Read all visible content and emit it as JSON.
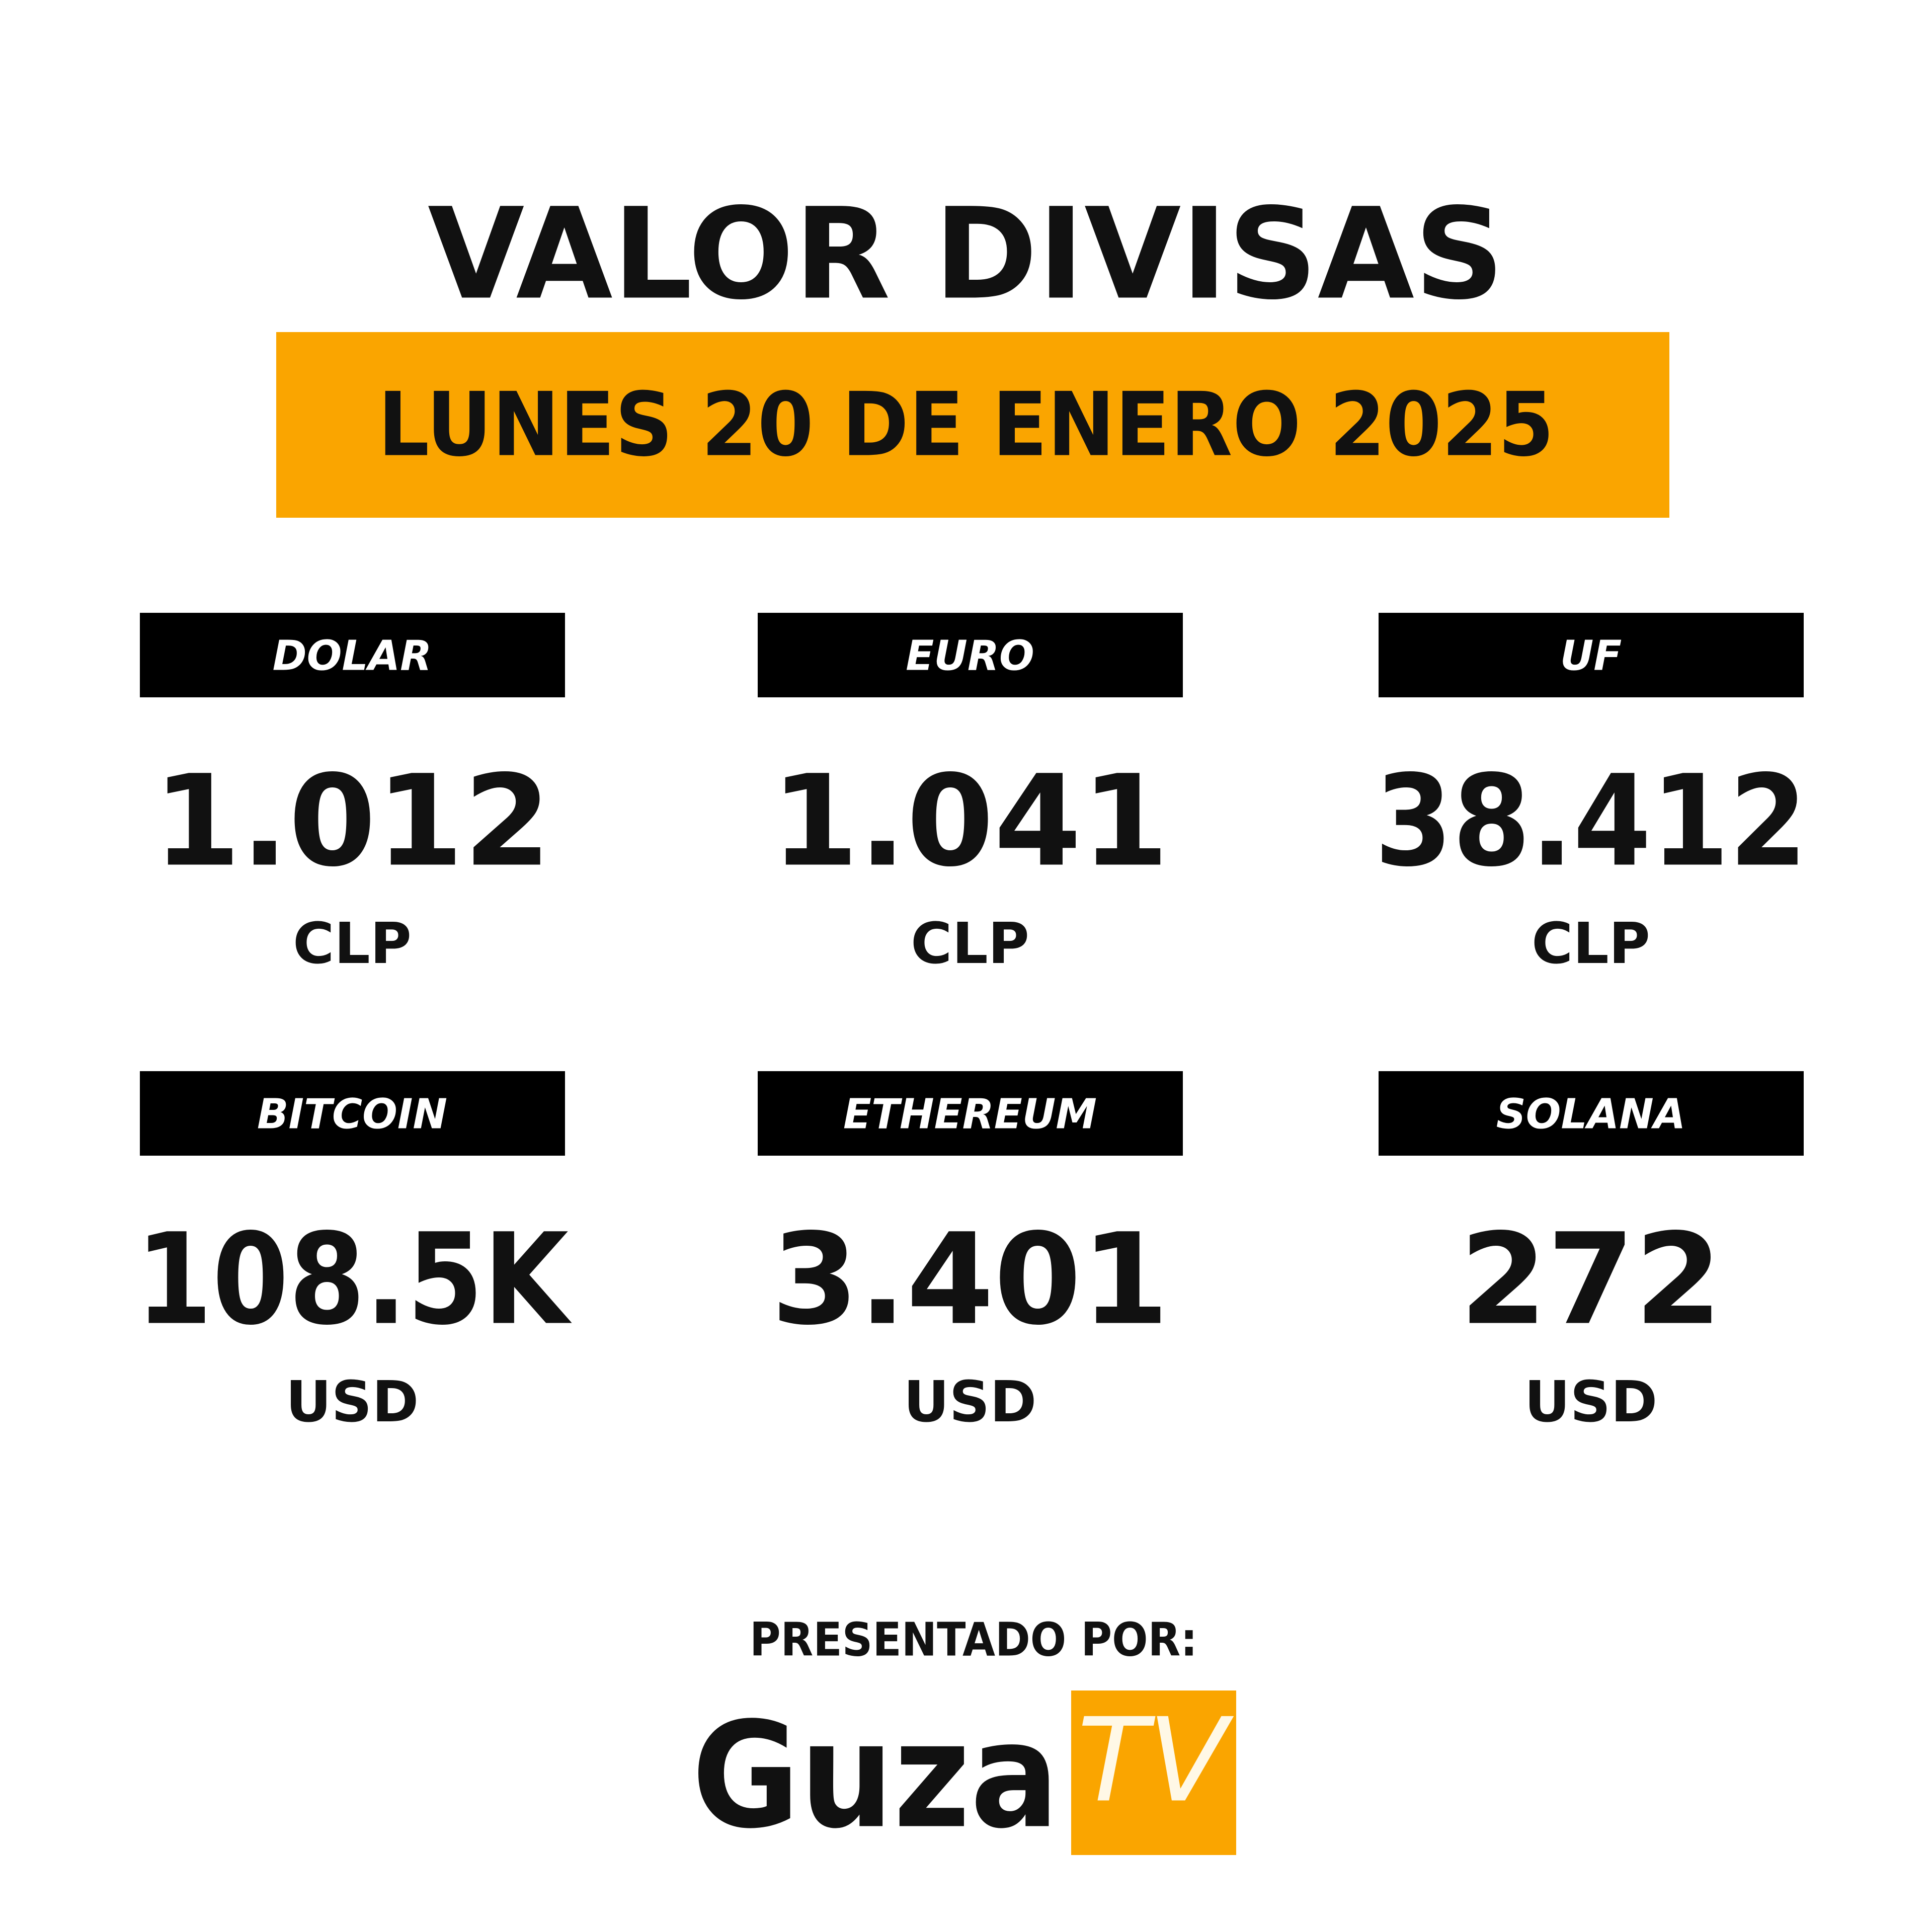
{
  "header": {
    "title": "VALOR DIVISAS",
    "date": "LUNES 20 DE ENERO 2025"
  },
  "items": [
    {
      "name": "DOLAR",
      "value": "1.012",
      "unit": "CLP"
    },
    {
      "name": "EURO",
      "value": "1.041",
      "unit": "CLP"
    },
    {
      "name": "UF",
      "value": "38.412",
      "unit": "CLP"
    },
    {
      "name": "BITCOIN",
      "value": "108.5K",
      "unit": "USD"
    },
    {
      "name": "ETHEREUM",
      "value": "3.401",
      "unit": "USD"
    },
    {
      "name": "SOLANA",
      "value": "272",
      "unit": "USD"
    }
  ],
  "footer": {
    "presented_by": "PRESENTADO POR:",
    "brand": "Guza",
    "brand_tag": "TV"
  }
}
